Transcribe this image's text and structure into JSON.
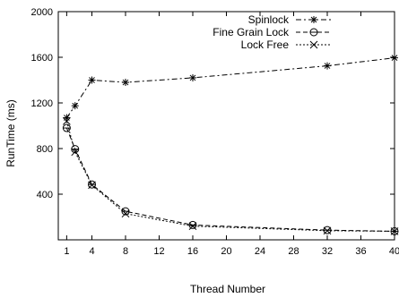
{
  "chart_data": {
    "type": "line",
    "title": "",
    "xlabel": "Thread Number",
    "ylabel": "RunTime (ms)",
    "xlim": [
      0,
      40
    ],
    "ylim": [
      0,
      2000
    ],
    "xticks": [
      1,
      4,
      8,
      12,
      16,
      20,
      24,
      28,
      32,
      36,
      40
    ],
    "yticks": [
      400,
      800,
      1200,
      1600,
      2000
    ],
    "grid": false,
    "legend_position": "top-right",
    "series": [
      {
        "name": "Spinlock",
        "marker": "asterisk",
        "dash": "dash-dot",
        "x": [
          1,
          2,
          4,
          8,
          16,
          32,
          40
        ],
        "y": [
          1070,
          1175,
          1400,
          1380,
          1420,
          1525,
          1595
        ]
      },
      {
        "name": "Fine Grain Lock",
        "marker": "circle",
        "dash": "dashed",
        "x": [
          1,
          2,
          4,
          8,
          16,
          32,
          40
        ],
        "y": [
          980,
          795,
          485,
          250,
          130,
          85,
          75
        ]
      },
      {
        "name": "Lock Free",
        "marker": "x",
        "dash": "dotted",
        "x": [
          1,
          2,
          4,
          8,
          16,
          32,
          40
        ],
        "y": [
          1040,
          770,
          480,
          230,
          120,
          80,
          75
        ]
      }
    ]
  }
}
